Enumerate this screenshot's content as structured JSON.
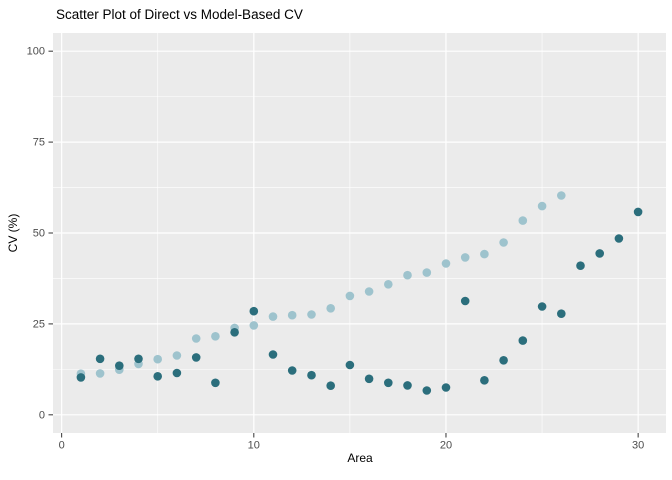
{
  "title": "Scatter Plot of Direct vs Model-Based CV",
  "colors": {
    "panel_background": "#ebebeb",
    "grid": "#ffffff",
    "axis_text": "#4d4d4d",
    "tick_mark": "#333333",
    "title_text": "#000000",
    "series_model_based": "#9ec3cd",
    "series_direct": "#2b6e7c"
  },
  "chart_data": {
    "type": "scatter",
    "title": "Scatter Plot of Direct vs Model-Based CV",
    "xlabel": "Area",
    "ylabel": "CV (%)",
    "x_ticks": [
      0,
      10,
      20,
      30
    ],
    "x_minor_ticks": [
      5,
      15,
      25
    ],
    "y_ticks": [
      0,
      25,
      50,
      75,
      100
    ],
    "y_minor_ticks": [
      12.5,
      37.5,
      62.5,
      87.5
    ],
    "xlim": [
      -0.45,
      31.45
    ],
    "ylim": [
      -5,
      105
    ],
    "grid": "major and minor white gridlines on gray panel",
    "legend": "none",
    "point_radius_px": 4.3,
    "x": [
      1,
      2,
      3,
      4,
      5,
      6,
      7,
      8,
      9,
      10,
      11,
      12,
      13,
      14,
      15,
      16,
      17,
      18,
      19,
      20,
      21,
      22,
      23,
      24,
      25,
      26,
      27,
      28,
      29,
      30
    ],
    "series": [
      {
        "name": "Model-Based CV",
        "color": "#9ec3cd",
        "values": [
          11.3,
          11.4,
          12.4,
          14.0,
          15.3,
          16.3,
          21.0,
          21.6,
          23.9,
          24.6,
          27.0,
          27.4,
          27.6,
          29.3,
          32.7,
          33.9,
          35.9,
          38.4,
          39.1,
          41.6,
          43.3,
          44.2,
          47.4,
          53.4,
          57.4,
          60.3,
          null,
          null,
          null,
          null
        ]
      },
      {
        "name": "Direct CV",
        "color": "#2b6e7c",
        "values": [
          10.3,
          15.4,
          13.5,
          15.4,
          10.6,
          11.5,
          15.8,
          8.8,
          22.7,
          28.5,
          16.6,
          12.2,
          10.9,
          8.0,
          13.7,
          9.9,
          8.8,
          8.1,
          6.7,
          7.5,
          31.3,
          9.5,
          15.0,
          20.4,
          29.8,
          27.8,
          41.0,
          44.4,
          48.5,
          55.8
        ]
      }
    ]
  }
}
